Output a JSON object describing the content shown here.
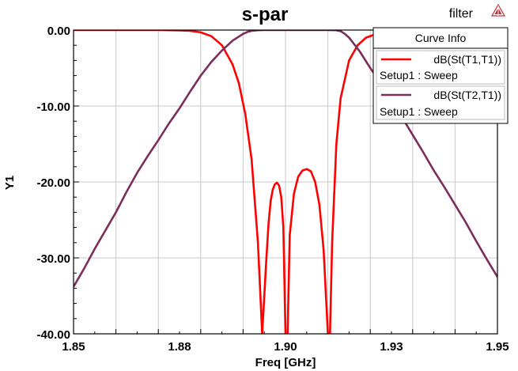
{
  "window": {
    "project_name": "filter",
    "logo_icon": "ansoft-logo-icon"
  },
  "chart_data": {
    "type": "line",
    "title": "s-par",
    "xlabel": "Freq [GHz]",
    "ylabel": "Y1",
    "xlim": [
      1.85,
      1.95
    ],
    "ylim": [
      -40,
      0
    ],
    "x_ticks": [
      1.85,
      1.875,
      1.9,
      1.925,
      1.95
    ],
    "x_tick_labels": [
      "1.85",
      "1.88",
      "1.90",
      "1.93",
      "1.95"
    ],
    "y_ticks": [
      0,
      -10,
      -20,
      -30,
      -40
    ],
    "y_tick_labels": [
      "0.00",
      "-10.00",
      "-20.00",
      "-30.00",
      "-40.00"
    ],
    "x_grid_step": 0.01,
    "grid": true,
    "legend": {
      "title": "Curve Info",
      "placement": "top-right",
      "entries": [
        {
          "name": "dB(St(T1,T1))",
          "sub": "Setup1 : Sweep",
          "color": "#ff0000"
        },
        {
          "name": "dB(St(T2,T1))",
          "sub": "Setup1 : Sweep",
          "color": "#7b2d5c"
        }
      ]
    },
    "series": [
      {
        "name": "dB(St(T1,T1))",
        "color": "#ff0000",
        "x": [
          1.85,
          1.87,
          1.875,
          1.8775,
          1.88,
          1.8825,
          1.885,
          1.8875,
          1.889,
          1.8905,
          1.892,
          1.8935,
          1.8945,
          1.8955,
          1.896,
          1.8965,
          1.897,
          1.8975,
          1.898,
          1.8985,
          1.899,
          1.8995,
          1.9,
          1.9005,
          1.901,
          1.902,
          1.903,
          1.904,
          1.905,
          1.906,
          1.907,
          1.908,
          1.909,
          1.91,
          1.9105,
          1.911,
          1.912,
          1.913,
          1.915,
          1.917,
          1.919,
          1.921,
          1.923,
          1.925,
          1.95
        ],
        "y": [
          0,
          0,
          -0.05,
          -0.1,
          -0.3,
          -0.8,
          -2,
          -4.5,
          -7,
          -11,
          -17,
          -28,
          -40,
          -30,
          -25.5,
          -22.5,
          -21,
          -20.3,
          -20.1,
          -20.5,
          -22,
          -26,
          -40,
          -40,
          -27,
          -21.5,
          -19.3,
          -18.5,
          -18.3,
          -18.6,
          -20,
          -23,
          -29,
          -40,
          -40,
          -28,
          -15,
          -9,
          -4,
          -2,
          -1,
          -0.6,
          -0.3,
          -0.1,
          0
        ]
      },
      {
        "name": "dB(St(T2,T1))",
        "color": "#7b2d5c",
        "x": [
          1.85,
          1.8525,
          1.855,
          1.8575,
          1.86,
          1.8625,
          1.865,
          1.8675,
          1.87,
          1.8725,
          1.875,
          1.8775,
          1.88,
          1.8825,
          1.885,
          1.8875,
          1.89,
          1.891,
          1.892,
          1.8935,
          1.895,
          1.9,
          1.905,
          1.91,
          1.912,
          1.913,
          1.914,
          1.915,
          1.9175,
          1.92,
          1.9225,
          1.925,
          1.9275,
          1.93,
          1.9325,
          1.935,
          1.9375,
          1.94,
          1.9425,
          1.945,
          1.9475,
          1.95
        ],
        "y": [
          -33.8,
          -31.4,
          -28.8,
          -26.4,
          -24.0,
          -21.3,
          -18.8,
          -16.6,
          -14.5,
          -12.3,
          -10.3,
          -8.1,
          -6.0,
          -4.2,
          -2.7,
          -1.4,
          -0.5,
          -0.25,
          -0.1,
          -0.02,
          0,
          0,
          0,
          0,
          -0.02,
          -0.15,
          -0.5,
          -1.0,
          -2.8,
          -5.0,
          -7.0,
          -9.3,
          -11.5,
          -13.8,
          -16.1,
          -18.5,
          -20.7,
          -23.0,
          -25.3,
          -27.8,
          -30.2,
          -32.5
        ]
      }
    ]
  }
}
